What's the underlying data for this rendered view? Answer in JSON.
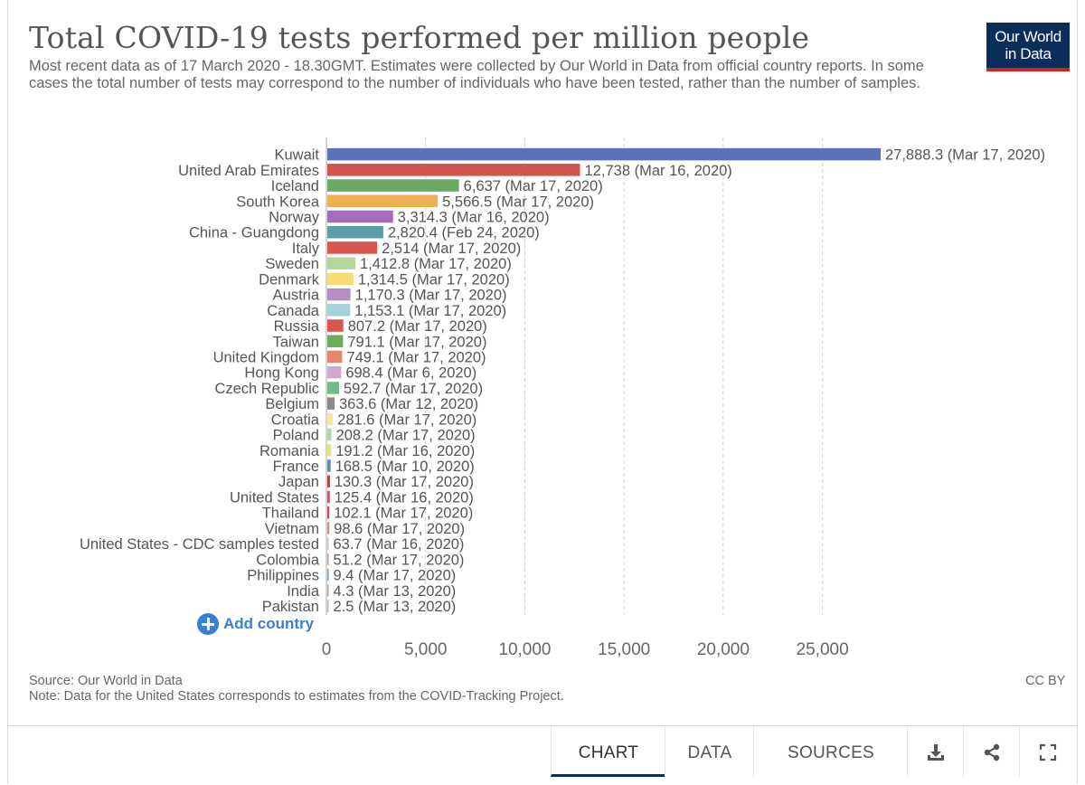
{
  "header": {
    "title": "Total COVID-19 tests performed per million people",
    "subtitle": "Most recent data as of 17 March 2020 - 18.30GMT. Estimates were collected by Our World in Data from official country reports. In some cases the total number of tests may correspond to the number of individuals who have been tested, rather than the number of samples."
  },
  "logo": {
    "line1": "Our World",
    "line2": "in Data",
    "bg_color": "#0a2e5c",
    "accent_color": "#ce261e"
  },
  "add_country_label": "Add country",
  "footer": {
    "source": "Source: Our World in Data",
    "note": "Note: Data for the United States corresponds to estimates from the COVID-Tracking Project.",
    "license": "CC BY"
  },
  "tabs": [
    {
      "label": "CHART",
      "active": true
    },
    {
      "label": "DATA",
      "active": false
    },
    {
      "label": "SOURCES",
      "active": false
    }
  ],
  "toolbar_icons": [
    "download-icon",
    "share-icon",
    "fullscreen-icon"
  ],
  "chart_data": {
    "type": "bar",
    "orientation": "horizontal",
    "title": "Total COVID-19 tests performed per million people",
    "xlim": [
      0,
      28000
    ],
    "x_ticks": [
      0,
      5000,
      10000,
      15000,
      20000,
      25000
    ],
    "x_tick_labels": [
      "0",
      "5,000",
      "10,000",
      "15,000",
      "20,000",
      "25,000"
    ],
    "grid": true,
    "categories": [
      "Kuwait",
      "United Arab Emirates",
      "Iceland",
      "South Korea",
      "Norway",
      "China - Guangdong",
      "Italy",
      "Sweden",
      "Denmark",
      "Austria",
      "Canada",
      "Russia",
      "Taiwan",
      "United Kingdom",
      "Hong Kong",
      "Czech Republic",
      "Belgium",
      "Croatia",
      "Poland",
      "Romania",
      "France",
      "Japan",
      "United States",
      "Thailand",
      "Vietnam",
      "United States - CDC samples tested",
      "Colombia",
      "Philippines",
      "India",
      "Pakistan"
    ],
    "values": [
      27888.3,
      12738,
      6637,
      5566.5,
      3314.3,
      2820.4,
      2514,
      1412.8,
      1314.5,
      1170.3,
      1153.1,
      807.2,
      791.1,
      749.1,
      698.4,
      592.7,
      363.6,
      281.6,
      208.2,
      191.2,
      168.5,
      130.3,
      125.4,
      102.1,
      98.6,
      63.7,
      51.2,
      9.4,
      4.3,
      2.5
    ],
    "value_labels": [
      "27,888.3 (Mar 17, 2020)",
      "12,738 (Mar 16, 2020)",
      "6,637 (Mar 17, 2020)",
      "5,566.5 (Mar 17, 2020)",
      "3,314.3 (Mar 16, 2020)",
      "2,820.4 (Feb 24, 2020)",
      "2,514 (Mar 17, 2020)",
      "1,412.8 (Mar 17, 2020)",
      "1,314.5 (Mar 17, 2020)",
      "1,170.3 (Mar 17, 2020)",
      "1,153.1 (Mar 17, 2020)",
      "807.2 (Mar 17, 2020)",
      "791.1 (Mar 17, 2020)",
      "749.1 (Mar 17, 2020)",
      "698.4 (Mar 6, 2020)",
      "592.7 (Mar 17, 2020)",
      "363.6 (Mar 12, 2020)",
      "281.6 (Mar 17, 2020)",
      "208.2 (Mar 17, 2020)",
      "191.2 (Mar 16, 2020)",
      "168.5 (Mar 10, 2020)",
      "130.3 (Mar 17, 2020)",
      "125.4 (Mar 16, 2020)",
      "102.1 (Mar 17, 2020)",
      "98.6 (Mar 17, 2020)",
      "63.7 (Mar 16, 2020)",
      "51.2 (Mar 17, 2020)",
      "9.4 (Mar 17, 2020)",
      "4.3 (Mar 13, 2020)",
      "2.5 (Mar 13, 2020)"
    ],
    "colors": [
      "#5b72b8",
      "#d2544f",
      "#6aa865",
      "#eeb052",
      "#a76ac1",
      "#5a9ea8",
      "#d95652",
      "#b5d69a",
      "#f6dc74",
      "#b48ec2",
      "#a4d2dc",
      "#d9554d",
      "#6eaa5f",
      "#e5876f",
      "#d4a6cd",
      "#75b98a",
      "#8a8a8a",
      "#f4e79a",
      "#b2d7a4",
      "#e6e27c",
      "#5f8fa5",
      "#b1403e",
      "#c7565a",
      "#c84b4b",
      "#c98f8a",
      "#c8c8c8",
      "#c9a29f",
      "#7f9ac0",
      "#c49a92",
      "#b8b8b8"
    ]
  }
}
